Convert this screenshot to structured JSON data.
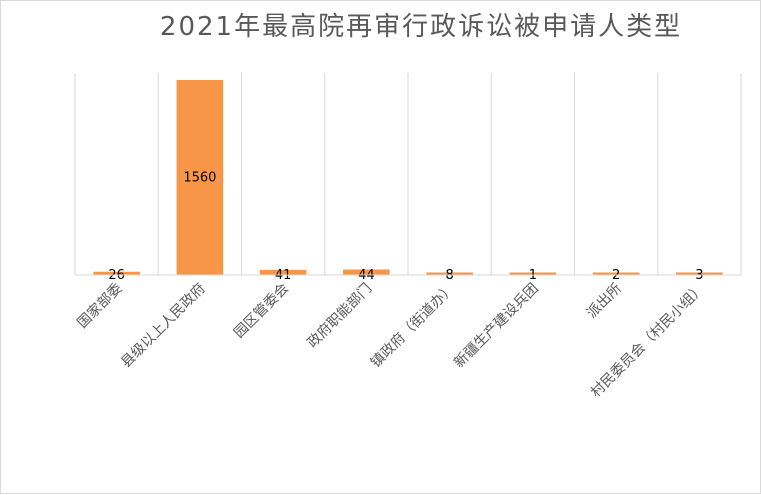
{
  "chart_data": {
    "type": "bar",
    "title": "2021年最高院再审行政诉讼被申请人类型",
    "categories": [
      "国家部委",
      "县级以上人民政府",
      "园区管委会",
      "政府职能部门",
      "镇政府（街道办）",
      "新疆生产建设兵团",
      "派出所",
      "村民委员会（村民小组）"
    ],
    "values": [
      26,
      1560,
      41,
      44,
      8,
      1,
      2,
      3
    ],
    "ylim": [
      0,
      1600
    ],
    "grid": "vertical separators between categories",
    "legend": "none",
    "xlabel": "",
    "ylabel": "",
    "bar_color": "#f79646",
    "gridline_color": "#d9d9d9",
    "title_color": "#595959"
  }
}
